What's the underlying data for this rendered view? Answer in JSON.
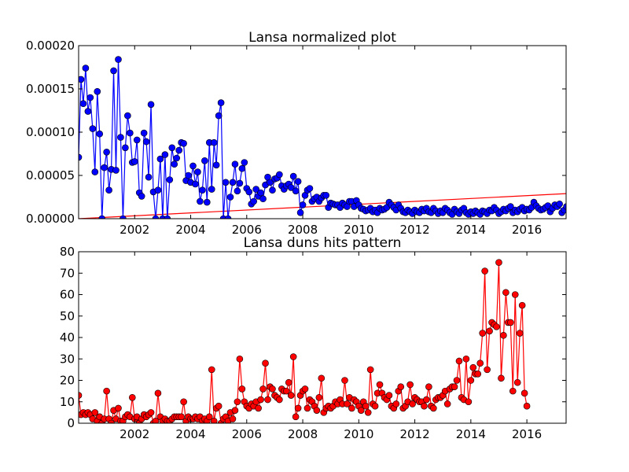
{
  "chart_data": [
    {
      "type": "line",
      "title": "Lansa normalized plot",
      "xlabel": "",
      "ylabel": "",
      "xlim": [
        2000.0,
        2017.4
      ],
      "ylim": [
        0,
        0.0002
      ],
      "x_ticks": [
        2002,
        2004,
        2006,
        2008,
        2010,
        2012,
        2014,
        2016
      ],
      "y_ticks": [
        "0.00000",
        "0.00005",
        "0.00010",
        "0.00015",
        "0.00020"
      ],
      "y_tick_values": [
        0,
        5e-05,
        0.0001,
        0.00015,
        0.0002
      ],
      "grid": false,
      "legend": "none",
      "series": [
        {
          "color": "#0000ff",
          "marker": "circle",
          "x_start": 2000.0,
          "x_step": 0.08333,
          "values": [
            7.1e-05,
            0.000161,
            0.000133,
            0.000174,
            0.000124,
            0.00014,
            0.000104,
            5.4e-05,
            0.000147,
            9.8e-05,
            0.0,
            5.9e-05,
            7.7e-05,
            3.3e-05,
            5.7e-05,
            0.000171,
            5.6e-05,
            0.000184,
            9.4e-05,
            0.0,
            8.2e-05,
            0.000119,
            9.9e-05,
            6.5e-05,
            6.6e-05,
            9.1e-05,
            3e-05,
            2.6e-05,
            9.9e-05,
            8.9e-05,
            4.8e-05,
            0.000132,
            3.1e-05,
            0.0,
            3.3e-05,
            6.9e-05,
            0.0,
            7.4e-05,
            0.0,
            4.5e-05,
            8.2e-05,
            6.3e-05,
            7e-05,
            7.9e-05,
            8.8e-05,
            8.7e-05,
            4.4e-05,
            5e-05,
            4.2e-05,
            6.1e-05,
            4e-05,
            5.4e-05,
            2e-05,
            3.3e-05,
            6.7e-05,
            1.9e-05,
            8.8e-05,
            3.4e-05,
            8.8e-05,
            6.2e-05,
            0.000119,
            0.000134,
            0.0,
            4.2e-05,
            0.0,
            2.5e-05,
            4.2e-05,
            6.3e-05,
            3.2e-05,
            4.1e-05,
            5.8e-05,
            6.5e-05,
            3.5e-05,
            3.1e-05,
            1.7e-05,
            2e-05,
            3.4e-05,
            2.6e-05,
            3e-05,
            2.3e-05,
            3.9e-05,
            4.8e-05,
            4.2e-05,
            3.3e-05,
            4.6e-05,
            4.7e-05,
            5.1e-05,
            3.8e-05,
            3.4e-05,
            3.8e-05,
            4e-05,
            3.6e-05,
            4.9e-05,
            3.2e-05,
            4.3e-05,
            7e-06,
            1.6e-05,
            2.7e-05,
            3.3e-05,
            3.5e-05,
            2e-05,
            2.3e-05,
            2.5e-05,
            2e-05,
            2.4e-05,
            2.7e-05,
            2.7e-05,
            1.3e-05,
            1.8e-05,
            1.7e-05,
            1.6e-05,
            1.6e-05,
            1.3e-05,
            1.8e-05,
            1.6e-05,
            1.4e-05,
            2e-05,
            2e-05,
            1.4e-05,
            2.1e-05,
            1.6e-05,
            1.2e-05,
            1.1e-05,
            9e-06,
            1e-05,
            1.2e-05,
            8e-06,
            1e-05,
            7e-06,
            1.2e-05,
            1e-05,
            1.1e-05,
            1.3e-05,
            1.9e-05,
            1.6e-05,
            1.3e-05,
            1e-05,
            1.6e-05,
            1.2e-05,
            8e-06,
            7e-06,
            1e-05,
            8e-06,
            6e-06,
            1e-05,
            8e-06,
            7e-06,
            1.1e-05,
            9e-06,
            1.2e-05,
            8e-06,
            7e-06,
            1.2e-05,
            9e-06,
            6e-06,
            9e-06,
            7e-06,
            1.2e-05,
            1e-05,
            7e-06,
            5e-06,
            1.1e-05,
            8e-06,
            6e-06,
            1e-05,
            1.2e-05,
            7e-06,
            5e-06,
            8e-06,
            6e-06,
            9e-06,
            7e-06,
            5e-06,
            9e-06,
            8e-06,
            6e-06,
            1e-05,
            9e-06,
            1.3e-05,
            1e-05,
            6e-06,
            8e-06,
            1.1e-05,
            9e-06,
            1.2e-05,
            1.4e-05,
            7e-06,
            1e-05,
            8e-06,
            1.1e-05,
            1.3e-05,
            9e-06,
            1.1e-05,
            1e-05,
            1.3e-05,
            1.9e-05,
            1.5e-05,
            1.2e-05,
            1e-05,
            1.1e-05,
            1.3e-05,
            1.5e-05,
            8e-06,
            1.2e-05,
            1.6e-05,
            1.4e-05,
            1.7e-05,
            7e-06,
            1e-05,
            1.4e-05,
            1.2e-05,
            1.5e-05,
            7e-06,
            1.8e-05,
            1.4e-05,
            7e-06,
            1.6e-05,
            1.4e-05,
            1.3e-05,
            6e-06,
            5e-06
          ]
        }
      ],
      "trendline": {
        "color": "#ff0000",
        "x": [
          2000.0,
          2017.4
        ],
        "y": [
          0.0,
          2.9e-05
        ]
      }
    },
    {
      "type": "line",
      "title": "Lansa duns hits pattern",
      "xlabel": "",
      "ylabel": "",
      "xlim": [
        2000.0,
        2017.4
      ],
      "ylim": [
        0,
        80
      ],
      "x_ticks": [
        2002,
        2004,
        2006,
        2008,
        2010,
        2012,
        2014,
        2016
      ],
      "y_ticks": [
        "0",
        "10",
        "20",
        "30",
        "40",
        "50",
        "60",
        "70",
        "80"
      ],
      "y_tick_values": [
        0,
        10,
        20,
        30,
        40,
        50,
        60,
        70,
        80
      ],
      "grid": false,
      "legend": "none",
      "series": [
        {
          "color": "#ff0000",
          "marker": "circle",
          "x_start": 2000.0,
          "x_step": 0.08333,
          "values": [
            13,
            4,
            5,
            4,
            5,
            4,
            2,
            5,
            1,
            3,
            0,
            2,
            15,
            2,
            0,
            6,
            2,
            7,
            1,
            1,
            3,
            4,
            3,
            12,
            2,
            3,
            0,
            2,
            4,
            3,
            4,
            5,
            0,
            1,
            14,
            3,
            1,
            2,
            1,
            1,
            2,
            3,
            3,
            3,
            3,
            10,
            1,
            3,
            2,
            2,
            3,
            2,
            3,
            1,
            2,
            1,
            3,
            25,
            1,
            7,
            8,
            0,
            2,
            3,
            1,
            5,
            2,
            6,
            10,
            30,
            16,
            10,
            8,
            7,
            9,
            8,
            10,
            7,
            11,
            16,
            28,
            11,
            17,
            16,
            13,
            12,
            11,
            16,
            15,
            15,
            19,
            13,
            31,
            3,
            7,
            13,
            15,
            16,
            7,
            11,
            10,
            8,
            6,
            12,
            21,
            5,
            7,
            8,
            7,
            8,
            10,
            9,
            11,
            9,
            20,
            9,
            12,
            7,
            11,
            10,
            8,
            6,
            10,
            8,
            5,
            25,
            9,
            8,
            14,
            18,
            14,
            12,
            11,
            13,
            8,
            7,
            9,
            15,
            17,
            7,
            8,
            10,
            18,
            9,
            12,
            11,
            10,
            10,
            8,
            11,
            17,
            8,
            7,
            11,
            12,
            12,
            13,
            15,
            9,
            16,
            17,
            17,
            20,
            29,
            12,
            11,
            30,
            10,
            20,
            26,
            23,
            23,
            28,
            42,
            71,
            25,
            43,
            47,
            46,
            45,
            75,
            21,
            41,
            61,
            47,
            47,
            15,
            60,
            19,
            42,
            55,
            14,
            8
          ]
        }
      ]
    }
  ]
}
